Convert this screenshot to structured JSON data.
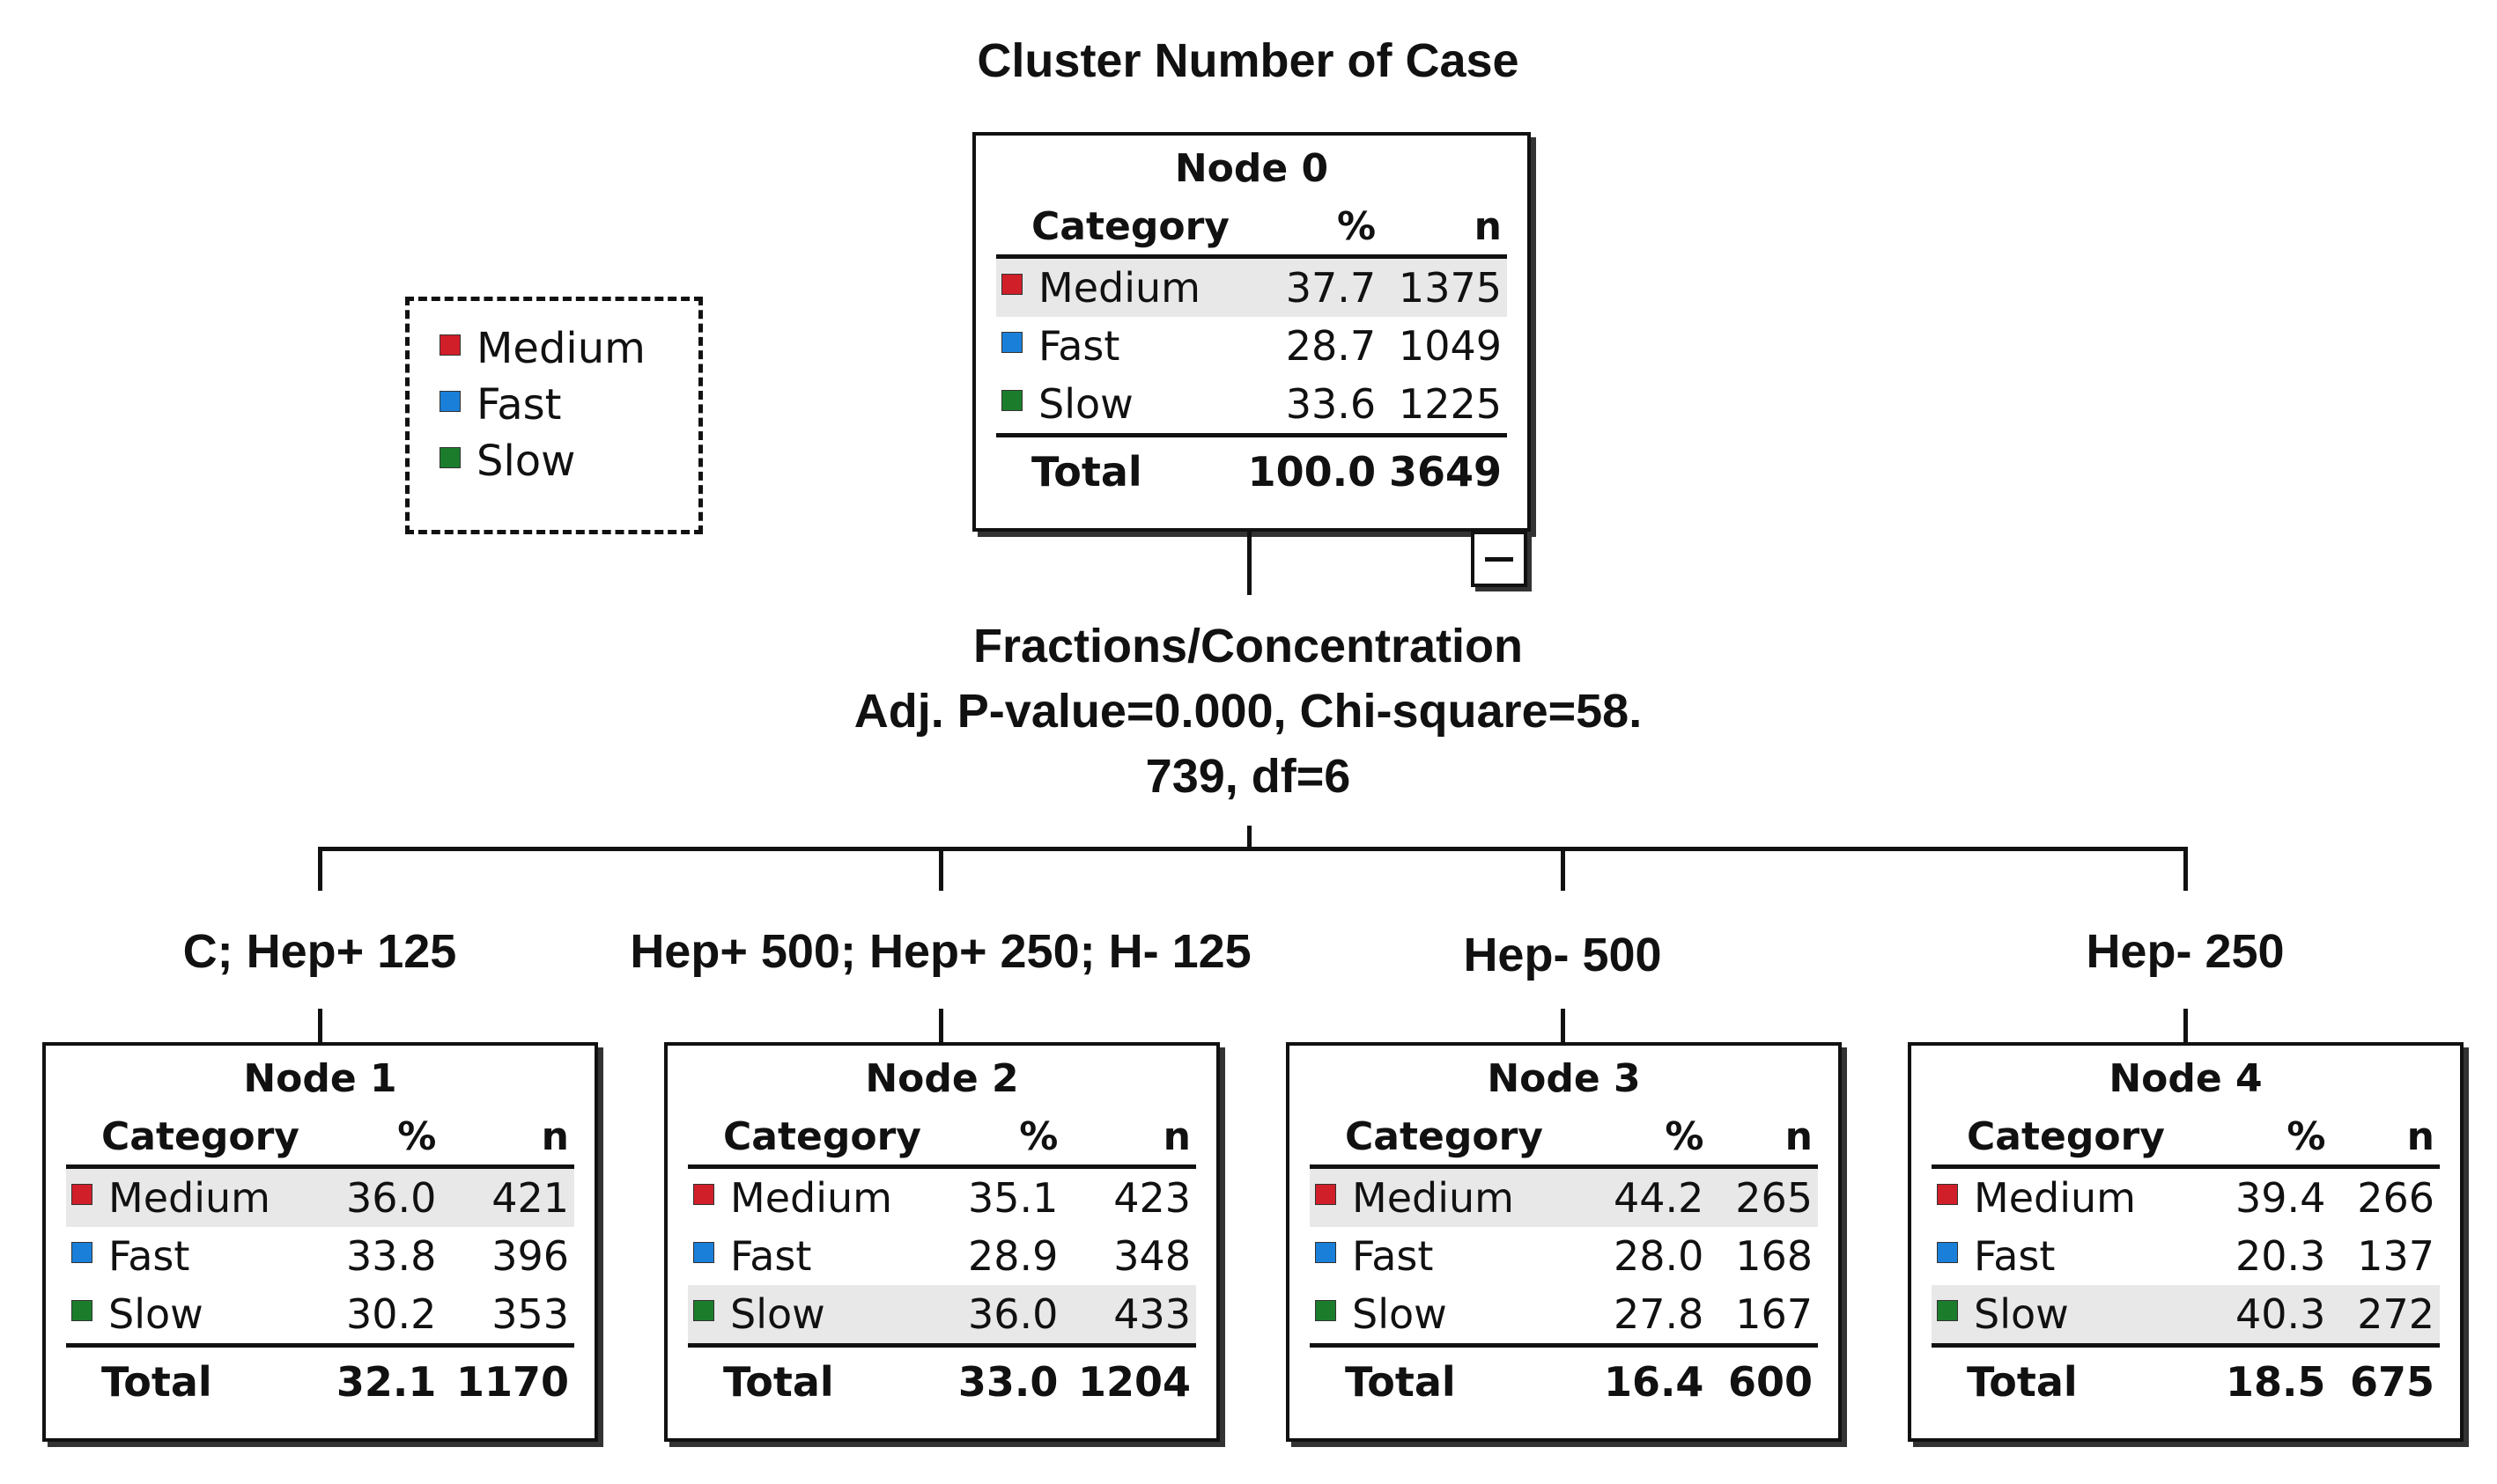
{
  "title": "Cluster Number of Case",
  "colors": {
    "Medium": "#d11f2a",
    "Fast": "#1a7fd8",
    "Slow": "#1b7d2c"
  },
  "legend": [
    {
      "label": "Medium",
      "icon": "red-square"
    },
    {
      "label": "Fast",
      "icon": "blue-square"
    },
    {
      "label": "Slow",
      "icon": "green-square"
    }
  ],
  "table_headers": {
    "category": "Category",
    "percent": "%",
    "n": "n"
  },
  "root": {
    "title": "Node 0",
    "rows": [
      {
        "category": "Medium",
        "percent": "37.7",
        "n": "1375"
      },
      {
        "category": "Fast",
        "percent": "28.7",
        "n": "1049"
      },
      {
        "category": "Slow",
        "percent": "33.6",
        "n": "1225"
      }
    ],
    "total": {
      "label": "Total",
      "percent": "100.0",
      "n": "3649"
    }
  },
  "split": {
    "variable": "Fractions/Concentration",
    "stats_line1": "Adj. P-value=0.000, Chi-square=58.",
    "stats_line2": "739, df=6"
  },
  "children": [
    {
      "branch": "C; Hep+ 125",
      "title": "Node 1",
      "rows": [
        {
          "category": "Medium",
          "percent": "36.0",
          "n": "421"
        },
        {
          "category": "Fast",
          "percent": "33.8",
          "n": "396"
        },
        {
          "category": "Slow",
          "percent": "30.2",
          "n": "353"
        }
      ],
      "total": {
        "label": "Total",
        "percent": "32.1",
        "n": "1170"
      }
    },
    {
      "branch": "Hep+ 500; Hep+ 250; H- 125",
      "title": "Node 2",
      "rows": [
        {
          "category": "Medium",
          "percent": "35.1",
          "n": "423"
        },
        {
          "category": "Fast",
          "percent": "28.9",
          "n": "348"
        },
        {
          "category": "Slow",
          "percent": "36.0",
          "n": "433"
        }
      ],
      "total": {
        "label": "Total",
        "percent": "33.0",
        "n": "1204"
      }
    },
    {
      "branch": "Hep- 500",
      "title": "Node 3",
      "rows": [
        {
          "category": "Medium",
          "percent": "44.2",
          "n": "265"
        },
        {
          "category": "Fast",
          "percent": "28.0",
          "n": "168"
        },
        {
          "category": "Slow",
          "percent": "27.8",
          "n": "167"
        }
      ],
      "total": {
        "label": "Total",
        "percent": "16.4",
        "n": "600"
      }
    },
    {
      "branch": "Hep- 250",
      "title": "Node 4",
      "rows": [
        {
          "category": "Medium",
          "percent": "39.4",
          "n": "266"
        },
        {
          "category": "Fast",
          "percent": "20.3",
          "n": "137"
        },
        {
          "category": "Slow",
          "percent": "40.3",
          "n": "272"
        }
      ],
      "total": {
        "label": "Total",
        "percent": "18.5",
        "n": "675"
      }
    }
  ]
}
